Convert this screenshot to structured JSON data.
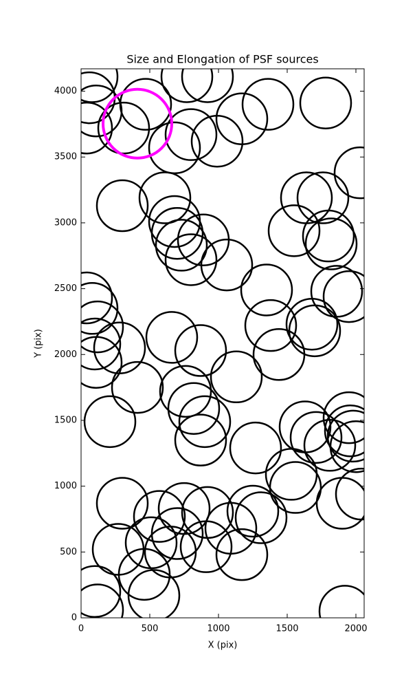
{
  "chart_data": {
    "type": "scatter",
    "title": "Size and Elongation of PSF sources",
    "x_label": "X (pix)",
    "y_label": "Y (pix)",
    "xlim": [
      0,
      2060
    ],
    "ylim": [
      0,
      4170
    ],
    "xticks": [
      0,
      500,
      1000,
      1500,
      2000
    ],
    "yticks": [
      0,
      500,
      1000,
      1500,
      2000,
      2500,
      3000,
      3500,
      4000
    ],
    "grid": false,
    "series": [
      {
        "color": "#000000",
        "x": [
          80,
          60,
          110,
          40,
          470,
          310,
          680,
          770,
          920,
          800,
          990,
          1170,
          1360,
          1780,
          2030,
          300,
          610,
          680,
          700,
          730,
          800,
          890,
          1060,
          1550,
          1640,
          1760,
          1800,
          1820,
          40,
          80,
          120,
          100,
          110,
          280,
          660,
          870,
          1130,
          1350,
          1380,
          1440,
          1680,
          1700,
          1860,
          1950,
          210,
          410,
          760,
          820,
          900,
          870,
          1270,
          1630,
          1710,
          1810,
          1950,
          1960,
          1980,
          2000,
          300,
          570,
          750,
          700,
          920,
          910,
          1090,
          1170,
          1250,
          1310,
          1530,
          1560,
          1900,
          2040,
          270,
          510,
          650,
          100,
          120,
          460,
          530,
          1920
        ],
        "y": [
          4110,
          3950,
          3850,
          3720,
          3900,
          3720,
          3570,
          4110,
          4110,
          3670,
          3620,
          3790,
          3900,
          3910,
          3380,
          3130,
          3190,
          3010,
          2920,
          2830,
          2720,
          2870,
          2680,
          2940,
          3190,
          3190,
          2900,
          2840,
          2430,
          2350,
          2210,
          2080,
          1940,
          2050,
          2130,
          2030,
          1830,
          2490,
          2220,
          2000,
          2230,
          2180,
          2480,
          2440,
          1490,
          1750,
          1720,
          1590,
          1490,
          1350,
          1290,
          1450,
          1370,
          1310,
          1520,
          1420,
          1380,
          1300,
          870,
          770,
          830,
          640,
          800,
          540,
          680,
          480,
          810,
          760,
          1090,
          990,
          870,
          940,
          520,
          570,
          500,
          200,
          60,
          330,
          170,
          50
        ]
      },
      {
        "color": "#ff00ff",
        "x": [
          410
        ],
        "y": [
          3753
        ]
      }
    ]
  }
}
